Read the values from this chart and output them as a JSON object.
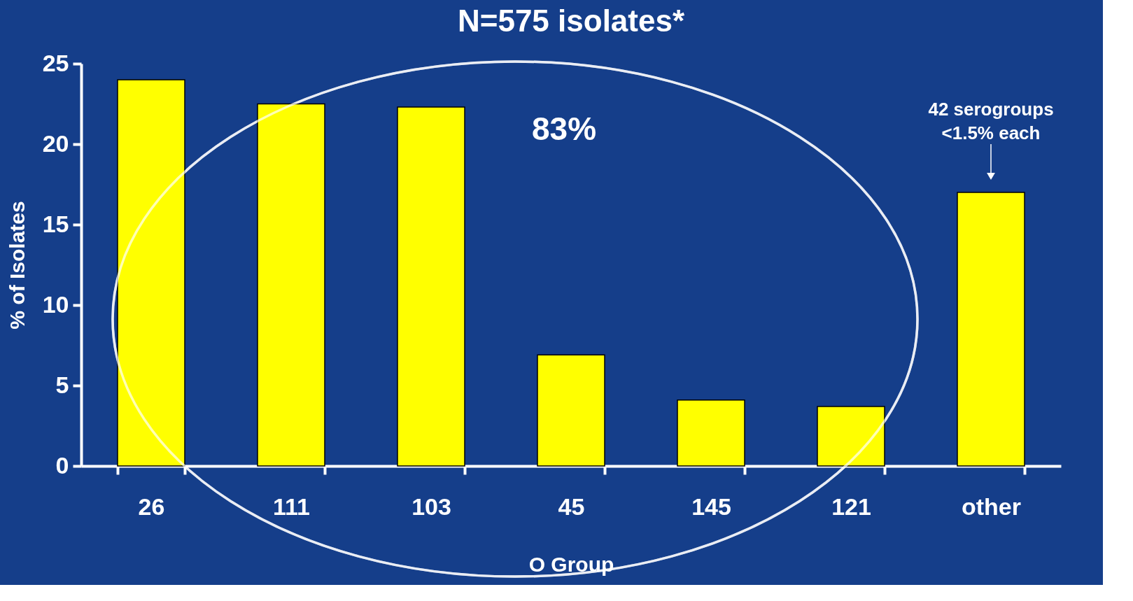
{
  "chart_data": {
    "type": "bar",
    "title": "N=575 isolates*",
    "xlabel": "O Group",
    "ylabel": "% of Isolates",
    "categories": [
      "26",
      "111",
      "103",
      "45",
      "145",
      "121",
      "other"
    ],
    "values": [
      24.0,
      22.5,
      22.3,
      6.9,
      4.1,
      3.7,
      17.0
    ],
    "color": "#ffff00",
    "ylim": [
      0,
      25
    ],
    "yticks": [
      0,
      5,
      10,
      15,
      20,
      25
    ],
    "grid": false,
    "annotations": [
      "83%",
      {
        "text": "42 serogroups\n<1.5% each",
        "x": "other",
        "y": 17.0
      }
    ]
  }
}
